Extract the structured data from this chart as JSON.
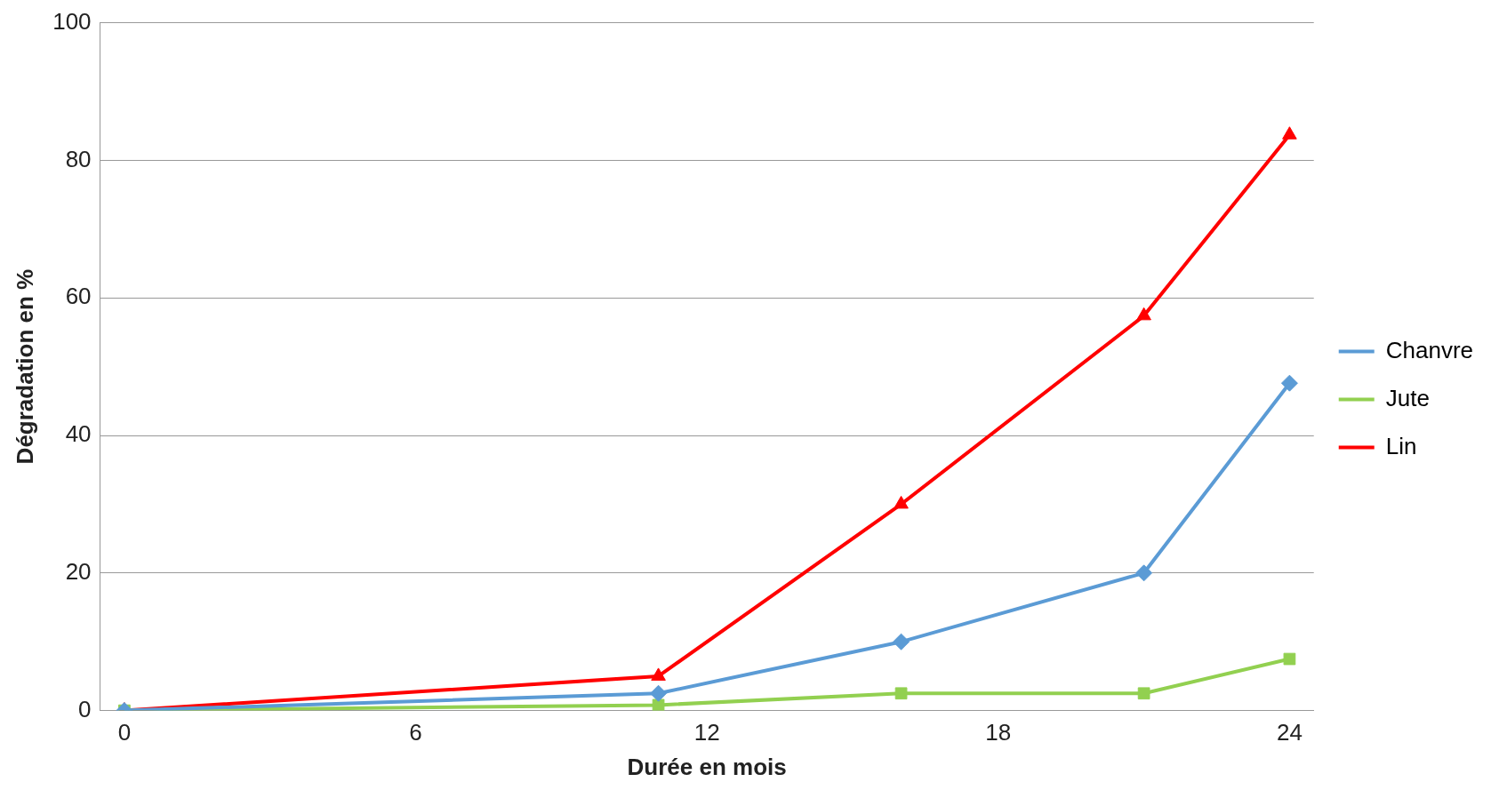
{
  "chart_data": {
    "type": "line",
    "xlabel": "Durée en mois",
    "ylabel": "Dégradation en %",
    "x": [
      0,
      11,
      16,
      21,
      24
    ],
    "series": [
      {
        "name": "Chanvre",
        "color": "#5b9bd5",
        "marker": "diamond",
        "values": [
          0,
          2.5,
          10,
          20,
          47.6
        ]
      },
      {
        "name": "Jute",
        "color": "#92d050",
        "marker": "square",
        "values": [
          0,
          0.8,
          2.5,
          2.5,
          7.5
        ]
      },
      {
        "name": "Lin",
        "color": "#ff0000",
        "marker": "triangle",
        "values": [
          0,
          5,
          30,
          57.4,
          83.7
        ]
      }
    ],
    "xlim": [
      -0.5,
      24.5
    ],
    "xticks": [
      0,
      6,
      12,
      18,
      24
    ],
    "ylim": [
      0,
      100
    ],
    "yticks": [
      0,
      20,
      40,
      60,
      80,
      100
    ],
    "grid": "y",
    "legend": "right",
    "line_style": "solid"
  }
}
